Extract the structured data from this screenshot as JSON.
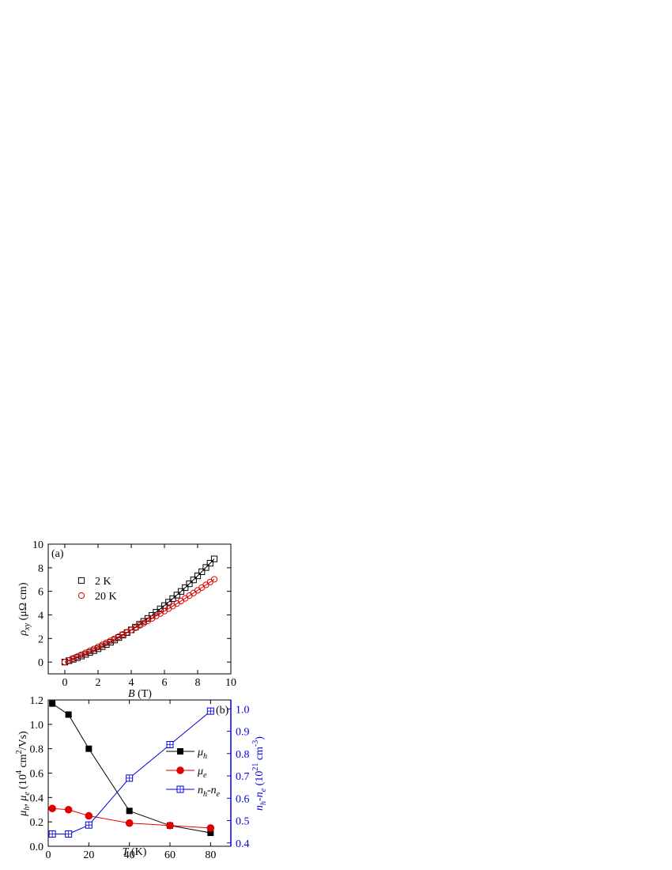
{
  "chart_data": [
    {
      "type": "scatter",
      "panel_label": "(a)",
      "x_label": [
        "B",
        " (T)"
      ],
      "y_label": [
        "ρ",
        "xy",
        " (μΩ cm)"
      ],
      "xlim": [
        -1,
        10
      ],
      "xticks": [
        0,
        2,
        4,
        6,
        8,
        10
      ],
      "ylim": [
        -1,
        10
      ],
      "yticks": [
        0,
        2,
        4,
        6,
        8,
        10
      ],
      "x": [
        0,
        0.25,
        0.5,
        0.75,
        1,
        1.25,
        1.5,
        1.75,
        2,
        2.25,
        2.5,
        2.75,
        3,
        3.25,
        3.5,
        3.75,
        4,
        4.25,
        4.5,
        4.75,
        5,
        5.25,
        5.5,
        5.75,
        6,
        6.25,
        6.5,
        6.75,
        7,
        7.25,
        7.5,
        7.75,
        8,
        8.25,
        8.5,
        8.75,
        9
      ],
      "series": [
        {
          "name": [
            "2 K"
          ],
          "color": "#000000",
          "marker": "square-open",
          "values": [
            0,
            0.12,
            0.24,
            0.37,
            0.51,
            0.65,
            0.81,
            0.97,
            1.13,
            1.31,
            1.49,
            1.68,
            1.87,
            2.08,
            2.29,
            2.5,
            2.73,
            2.96,
            3.2,
            3.45,
            3.7,
            3.96,
            4.23,
            4.51,
            4.79,
            5.08,
            5.38,
            5.68,
            5.99,
            6.31,
            6.64,
            6.97,
            7.31,
            7.66,
            8.02,
            8.38,
            8.75
          ]
        },
        {
          "name": [
            "20 K"
          ],
          "color": "#e00000",
          "marker": "circle-open",
          "values": [
            0,
            0.15,
            0.31,
            0.46,
            0.62,
            0.78,
            0.95,
            1.11,
            1.28,
            1.45,
            1.63,
            1.8,
            1.98,
            2.16,
            2.35,
            2.53,
            2.72,
            2.91,
            3.11,
            3.3,
            3.5,
            3.7,
            3.91,
            4.11,
            4.32,
            4.53,
            4.75,
            4.96,
            5.18,
            5.4,
            5.63,
            5.85,
            6.08,
            6.31,
            6.55,
            6.78,
            7.02
          ]
        }
      ]
    },
    {
      "type": "line",
      "panel_label": "(b)",
      "x_label": [
        "T",
        " (K)"
      ],
      "y_label": [
        "μ",
        "h",
        ", μ",
        "e",
        " (10",
        "4",
        " cm",
        "2",
        "/Vs)"
      ],
      "y2_label": [
        "n",
        "h",
        "-n",
        "e",
        " (10",
        "21",
        " cm",
        "-3",
        ")"
      ],
      "xlim": [
        0,
        90
      ],
      "xticks": [
        0,
        20,
        40,
        60,
        80
      ],
      "ylim": [
        0,
        1.2
      ],
      "yticks": [
        {
          "value": 0,
          "label": "0.0"
        },
        0.2,
        0.4,
        0.6,
        0.8,
        {
          "value": 1,
          "label": "1.0"
        },
        1.2
      ],
      "y2lim": [
        0.385,
        1.04
      ],
      "y2ticks": [
        0.4,
        0.5,
        0.6,
        0.7,
        0.8,
        0.9,
        {
          "value": 1,
          "label": "1.0"
        }
      ],
      "x": [
        2,
        10,
        20,
        40,
        60,
        80
      ],
      "series": [
        {
          "name": [
            "μ",
            "h"
          ],
          "color": "#000000",
          "marker": "square",
          "values": [
            1.17,
            1.08,
            0.8,
            0.29,
            0.17,
            0.11
          ]
        },
        {
          "name": [
            "μ",
            "e"
          ],
          "color": "#e00000",
          "marker": "circle",
          "values": [
            0.31,
            0.3,
            0.25,
            0.19,
            0.17,
            0.15
          ]
        },
        {
          "name": [
            "n",
            "h",
            "-n",
            "e"
          ],
          "color": "#0000e0",
          "marker": "square-plus",
          "axis": "y2",
          "values": [
            0.44,
            0.44,
            0.48,
            0.69,
            0.84,
            0.99
          ]
        }
      ]
    }
  ]
}
